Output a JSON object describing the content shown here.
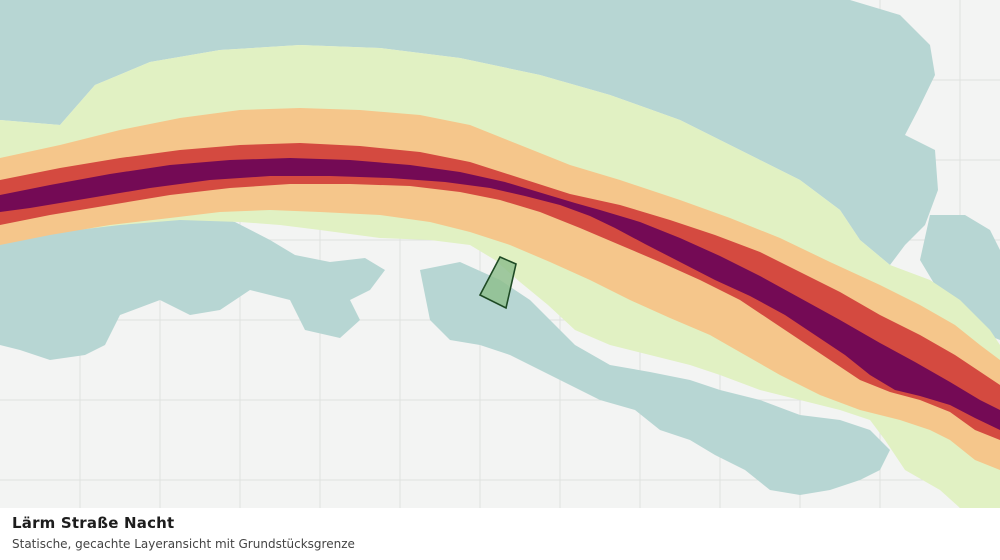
{
  "caption": {
    "title": "Lärm Straße Nacht",
    "subtitle": "Statische, gecachte Layeransicht mit Grundstücksgrenze"
  },
  "map": {
    "layer": "noise-road-night",
    "colors": {
      "background": "#f3f4f3",
      "grid": "#dfe2df",
      "water_or_quiet": "#b7d6d3",
      "band_low": "#e1f1c3",
      "band_mid": "#f5c68b",
      "band_high": "#d44a40",
      "band_highest": "#740a55",
      "parcel_fill": "#8fc08e",
      "parcel_stroke": "#1e4a24"
    }
  }
}
